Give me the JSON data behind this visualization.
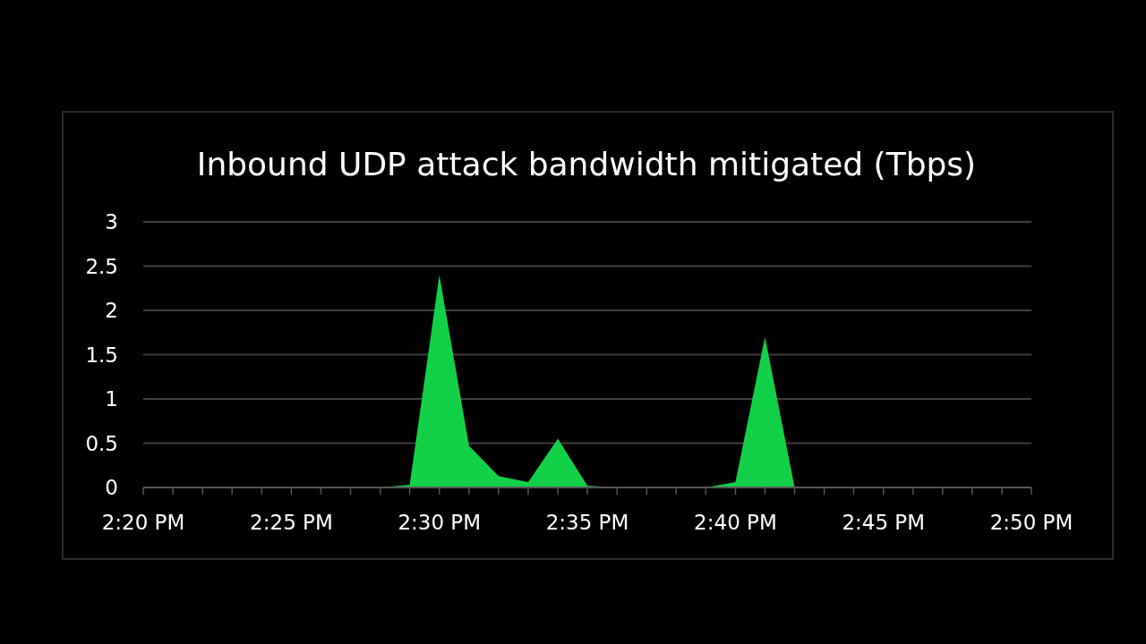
{
  "chart_data": {
    "type": "area",
    "title": "Inbound UDP attack bandwidth mitigated (Tbps)",
    "x": [
      14.4667,
      14.4833,
      14.5,
      14.5167,
      14.5333,
      14.55,
      14.5667,
      14.5833,
      14.6,
      14.6167,
      14.6333,
      14.65,
      14.6667,
      14.6833,
      14.7
    ],
    "series": [
      {
        "color": "#12d149",
        "values": [
          0,
          0.03,
          2.4,
          0.47,
          0.13,
          0.06,
          0.55,
          0.02,
          0,
          0,
          0,
          0,
          0.06,
          1.7,
          0
        ]
      }
    ],
    "xlim": [
      14.3333,
      14.8333
    ],
    "xticks": [
      {
        "value": 14.3333,
        "label": "2:20 PM"
      },
      {
        "value": 14.35,
        "label": null
      },
      {
        "value": 14.3667,
        "label": null
      },
      {
        "value": 14.3833,
        "label": null
      },
      {
        "value": 14.4,
        "label": null
      },
      {
        "value": 14.4167,
        "label": "2:25 PM"
      },
      {
        "value": 14.4333,
        "label": null
      },
      {
        "value": 14.45,
        "label": null
      },
      {
        "value": 14.4667,
        "label": null
      },
      {
        "value": 14.4833,
        "label": null
      },
      {
        "value": 14.5,
        "label": "2:30 PM"
      },
      {
        "value": 14.5167,
        "label": null
      },
      {
        "value": 14.5333,
        "label": null
      },
      {
        "value": 14.55,
        "label": null
      },
      {
        "value": 14.5667,
        "label": null
      },
      {
        "value": 14.5833,
        "label": "2:35 PM"
      },
      {
        "value": 14.6,
        "label": null
      },
      {
        "value": 14.6167,
        "label": null
      },
      {
        "value": 14.6333,
        "label": null
      },
      {
        "value": 14.65,
        "label": null
      },
      {
        "value": 14.6667,
        "label": "2:40 PM"
      },
      {
        "value": 14.6833,
        "label": null
      },
      {
        "value": 14.7,
        "label": null
      },
      {
        "value": 14.7167,
        "label": null
      },
      {
        "value": 14.7333,
        "label": null
      },
      {
        "value": 14.75,
        "label": "2:45 PM"
      },
      {
        "value": 14.7667,
        "label": null
      },
      {
        "value": 14.7833,
        "label": null
      },
      {
        "value": 14.8,
        "label": null
      },
      {
        "value": 14.8167,
        "label": null
      },
      {
        "value": 14.8333,
        "label": "2:50 PM"
      }
    ],
    "ylim": [
      0,
      3
    ],
    "yticks": [
      0,
      0.5,
      1,
      1.5,
      2,
      2.5,
      3
    ],
    "grid": "y"
  }
}
